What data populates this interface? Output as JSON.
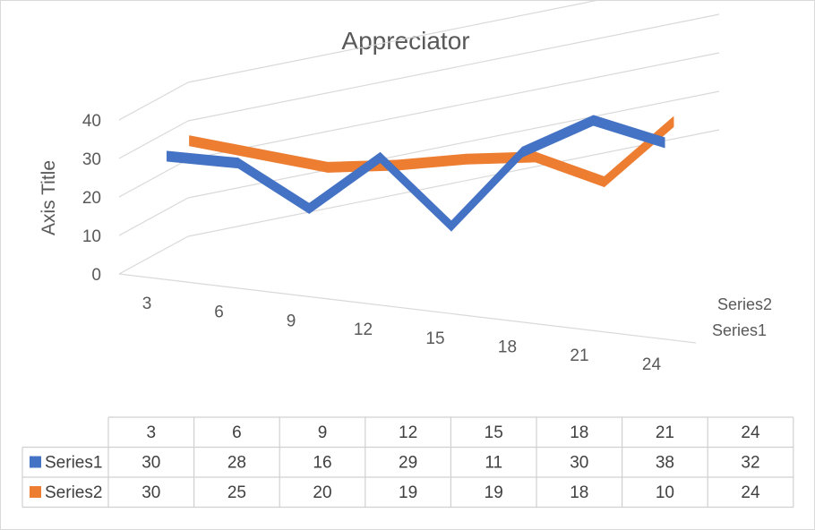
{
  "chart_data": {
    "type": "line",
    "title": "Appreciator",
    "xlabel": "",
    "ylabel": "Axis Title",
    "categories": [
      "3",
      "6",
      "9",
      "12",
      "15",
      "18",
      "21",
      "24"
    ],
    "y_ticks": [
      "0",
      "10",
      "20",
      "30",
      "40"
    ],
    "ylim": [
      0,
      40
    ],
    "grid": true,
    "depth_axis_labels": [
      "Series2",
      "Series1"
    ],
    "series": [
      {
        "name": "Series1",
        "values": [
          30,
          28,
          16,
          29,
          11,
          30,
          38,
          32
        ],
        "color": "#4472c4"
      },
      {
        "name": "Series2",
        "values": [
          30,
          25,
          20,
          19,
          19,
          18,
          10,
          24
        ],
        "color": "#ed7d31"
      }
    ],
    "data_table": true,
    "legend": "data-table"
  }
}
